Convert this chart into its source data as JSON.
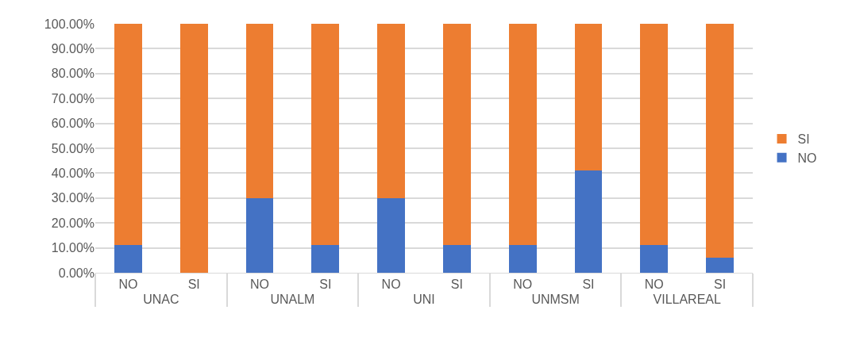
{
  "chart_data": {
    "type": "bar",
    "stacked": true,
    "categories": [
      "NO",
      "SI",
      "NO",
      "SI",
      "NO",
      "SI",
      "NO",
      "SI",
      "NO",
      "SI"
    ],
    "annotations": [
      "UNAC",
      "UNALM",
      "UNI",
      "UNMSM",
      "VILLAREAL"
    ],
    "series": [
      {
        "name": "NO",
        "color": "#4472c4",
        "values": [
          11,
          0,
          30,
          11,
          30,
          11,
          11,
          41,
          11,
          6
        ]
      },
      {
        "name": "SI",
        "color": "#ed7d31",
        "values": [
          89,
          100,
          70,
          89,
          70,
          89,
          89,
          59,
          89,
          94
        ]
      }
    ],
    "ylim": [
      0,
      100
    ],
    "yticks": [
      {
        "value": 0,
        "label": "0.00%"
      },
      {
        "value": 10,
        "label": "10.00%"
      },
      {
        "value": 20,
        "label": "20.00%"
      },
      {
        "value": 30,
        "label": "30.00%"
      },
      {
        "value": 40,
        "label": "40.00%"
      },
      {
        "value": 50,
        "label": "50.00%"
      },
      {
        "value": 60,
        "label": "60.00%"
      },
      {
        "value": 70,
        "label": "70.00%"
      },
      {
        "value": 80,
        "label": "80.00%"
      },
      {
        "value": 90,
        "label": "90.00%"
      },
      {
        "value": 100,
        "label": "100.00%"
      }
    ],
    "grid": "y",
    "legend": "right"
  }
}
